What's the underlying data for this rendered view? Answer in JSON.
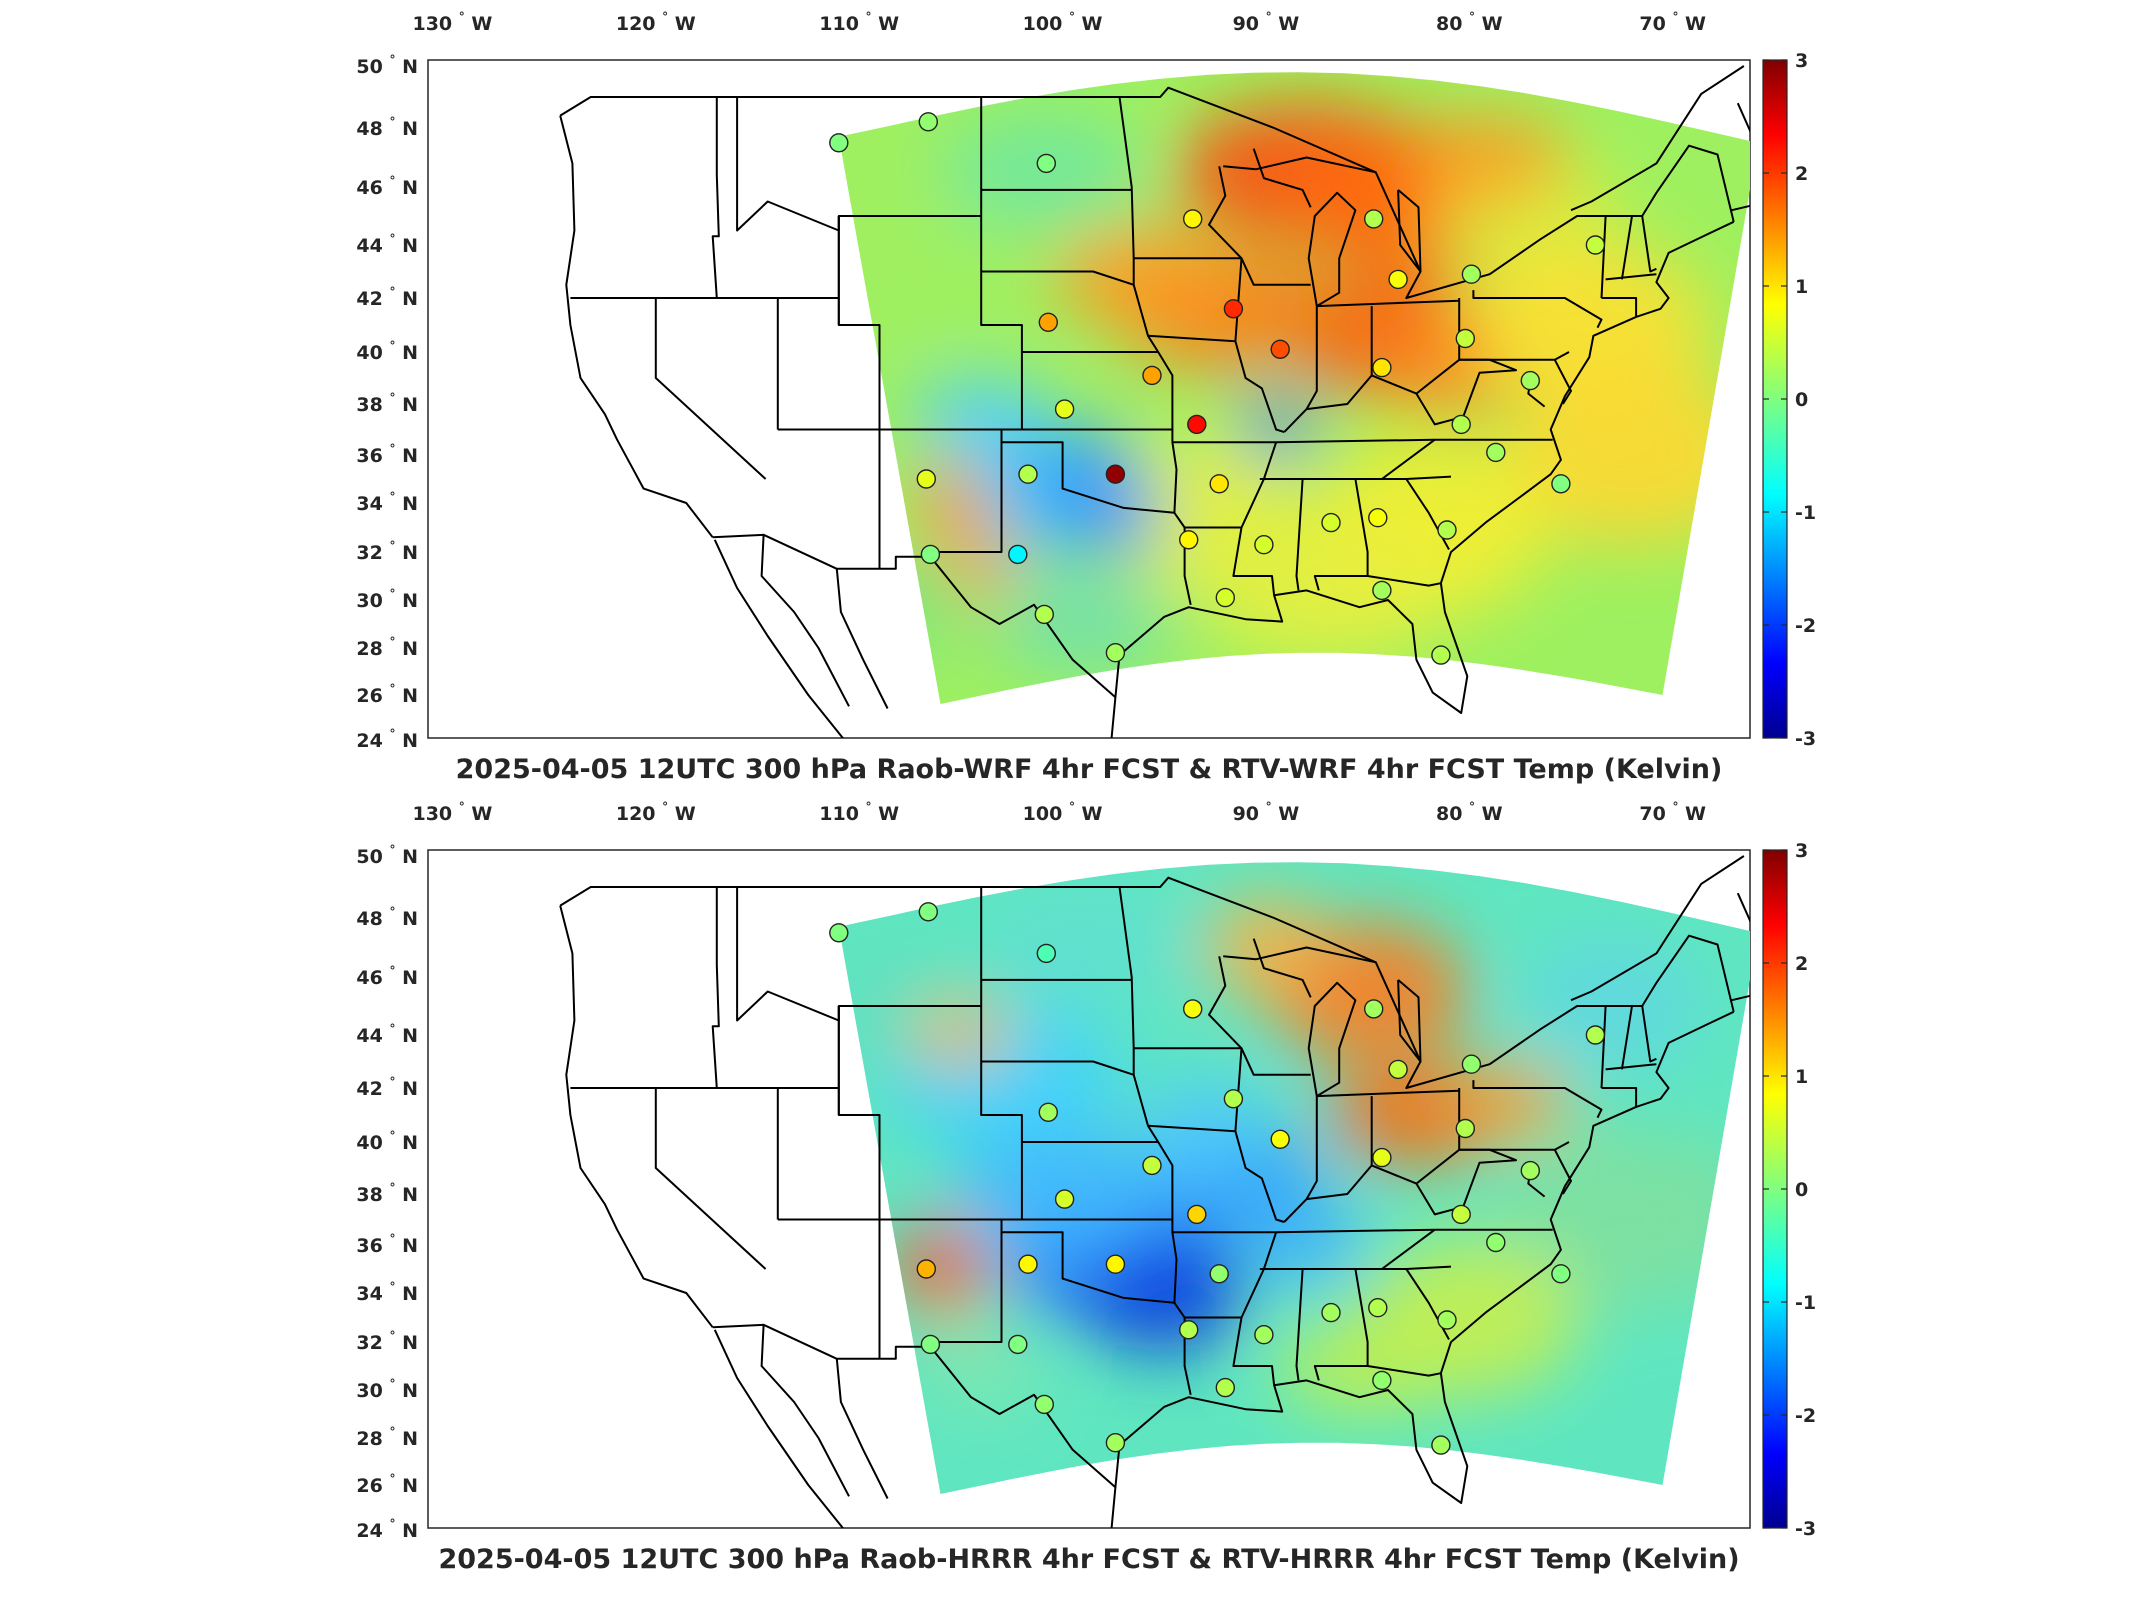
{
  "panels": [
    {
      "title": "2025-04-05 12UTC 300 hPa Raob-WRF 4hr FCST & RTV-WRF 4hr FCST Temp (Kelvin)",
      "stations": [
        {
          "lon": -111.0,
          "lat": 47.5,
          "v": 0.0
        },
        {
          "lon": -106.6,
          "lat": 48.2,
          "v": 0.1
        },
        {
          "lon": -100.8,
          "lat": 46.8,
          "v": 0.0
        },
        {
          "lon": -93.6,
          "lat": 44.9,
          "v": 0.8
        },
        {
          "lon": -84.7,
          "lat": 44.9,
          "v": 0.3
        },
        {
          "lon": -83.5,
          "lat": 42.7,
          "v": 0.7
        },
        {
          "lon": -79.9,
          "lat": 42.9,
          "v": 0.2
        },
        {
          "lon": -73.8,
          "lat": 44.0,
          "v": 0.4
        },
        {
          "lon": -100.7,
          "lat": 41.1,
          "v": 1.3
        },
        {
          "lon": -91.6,
          "lat": 41.6,
          "v": 2.0
        },
        {
          "lon": -89.3,
          "lat": 40.1,
          "v": 1.8
        },
        {
          "lon": -84.3,
          "lat": 39.4,
          "v": 0.9
        },
        {
          "lon": -80.2,
          "lat": 40.5,
          "v": 0.4
        },
        {
          "lon": -95.6,
          "lat": 39.1,
          "v": 1.3
        },
        {
          "lon": -99.9,
          "lat": 37.8,
          "v": 0.6
        },
        {
          "lon": -93.4,
          "lat": 37.2,
          "v": 2.2
        },
        {
          "lon": -80.4,
          "lat": 37.2,
          "v": 0.3
        },
        {
          "lon": -77.0,
          "lat": 38.9,
          "v": 0.2
        },
        {
          "lon": -75.5,
          "lat": 34.8,
          "v": 0.0
        },
        {
          "lon": -78.7,
          "lat": 36.1,
          "v": 0.2
        },
        {
          "lon": -106.7,
          "lat": 35.0,
          "v": 0.6
        },
        {
          "lon": -101.7,
          "lat": 35.2,
          "v": 0.3
        },
        {
          "lon": -97.4,
          "lat": 35.2,
          "v": 2.9
        },
        {
          "lon": -92.3,
          "lat": 34.8,
          "v": 0.9
        },
        {
          "lon": -86.8,
          "lat": 33.2,
          "v": 0.5
        },
        {
          "lon": -84.5,
          "lat": 33.4,
          "v": 0.7
        },
        {
          "lon": -81.1,
          "lat": 32.9,
          "v": 0.3
        },
        {
          "lon": -106.5,
          "lat": 31.9,
          "v": 0.0
        },
        {
          "lon": -102.2,
          "lat": 31.9,
          "v": -0.8
        },
        {
          "lon": -93.8,
          "lat": 32.5,
          "v": 0.8
        },
        {
          "lon": -90.1,
          "lat": 32.3,
          "v": 0.5
        },
        {
          "lon": -84.3,
          "lat": 30.4,
          "v": 0.2
        },
        {
          "lon": -92.0,
          "lat": 30.1,
          "v": 0.5
        },
        {
          "lon": -100.9,
          "lat": 29.4,
          "v": 0.3
        },
        {
          "lon": -97.4,
          "lat": 27.8,
          "v": 0.2
        },
        {
          "lon": -81.4,
          "lat": 27.7,
          "v": 0.3
        }
      ]
    },
    {
      "title": "2025-04-05 12UTC 300 hPa Raob-HRRR 4hr FCST & RTV-HRRR 4hr FCST Temp (Kelvin)",
      "stations": [
        {
          "lon": -111.0,
          "lat": 47.5,
          "v": 0.0
        },
        {
          "lon": -106.6,
          "lat": 48.2,
          "v": 0.0
        },
        {
          "lon": -100.8,
          "lat": 46.8,
          "v": -0.3
        },
        {
          "lon": -93.6,
          "lat": 44.9,
          "v": 0.7
        },
        {
          "lon": -84.7,
          "lat": 44.9,
          "v": 0.2
        },
        {
          "lon": -83.5,
          "lat": 42.7,
          "v": 0.4
        },
        {
          "lon": -79.9,
          "lat": 42.9,
          "v": 0.1
        },
        {
          "lon": -73.8,
          "lat": 44.0,
          "v": 0.3
        },
        {
          "lon": -100.7,
          "lat": 41.1,
          "v": 0.2
        },
        {
          "lon": -91.6,
          "lat": 41.6,
          "v": 0.3
        },
        {
          "lon": -89.3,
          "lat": 40.1,
          "v": 0.7
        },
        {
          "lon": -84.3,
          "lat": 39.4,
          "v": 0.6
        },
        {
          "lon": -80.2,
          "lat": 40.5,
          "v": 0.3
        },
        {
          "lon": -95.6,
          "lat": 39.1,
          "v": 0.4
        },
        {
          "lon": -99.9,
          "lat": 37.8,
          "v": 0.5
        },
        {
          "lon": -93.4,
          "lat": 37.2,
          "v": 1.0
        },
        {
          "lon": -80.4,
          "lat": 37.2,
          "v": 0.4
        },
        {
          "lon": -77.0,
          "lat": 38.9,
          "v": 0.2
        },
        {
          "lon": -75.5,
          "lat": 34.8,
          "v": 0.0
        },
        {
          "lon": -78.7,
          "lat": 36.1,
          "v": 0.1
        },
        {
          "lon": -106.7,
          "lat": 35.0,
          "v": 1.2
        },
        {
          "lon": -101.7,
          "lat": 35.2,
          "v": 0.8
        },
        {
          "lon": -97.4,
          "lat": 35.2,
          "v": 0.8
        },
        {
          "lon": -92.3,
          "lat": 34.8,
          "v": 0.1
        },
        {
          "lon": -86.8,
          "lat": 33.2,
          "v": 0.2
        },
        {
          "lon": -84.5,
          "lat": 33.4,
          "v": 0.3
        },
        {
          "lon": -81.1,
          "lat": 32.9,
          "v": 0.2
        },
        {
          "lon": -106.5,
          "lat": 31.9,
          "v": 0.0
        },
        {
          "lon": -102.2,
          "lat": 31.9,
          "v": 0.0
        },
        {
          "lon": -93.8,
          "lat": 32.5,
          "v": 0.3
        },
        {
          "lon": -90.1,
          "lat": 32.3,
          "v": 0.2
        },
        {
          "lon": -84.3,
          "lat": 30.4,
          "v": 0.1
        },
        {
          "lon": -92.0,
          "lat": 30.1,
          "v": 0.3
        },
        {
          "lon": -100.9,
          "lat": 29.4,
          "v": 0.1
        },
        {
          "lon": -97.4,
          "lat": 27.8,
          "v": 0.2
        },
        {
          "lon": -81.4,
          "lat": 27.7,
          "v": 0.2
        }
      ]
    }
  ],
  "lon_ticks": [
    "130",
    "120",
    "110",
    "100",
    "90",
    "80",
    "70"
  ],
  "lon_hemi": "W",
  "lat_ticks": [
    "24",
    "26",
    "28",
    "30",
    "32",
    "34",
    "36",
    "38",
    "40",
    "42",
    "44",
    "46",
    "48",
    "50"
  ],
  "lat_hemi": "N",
  "degree_symbol": "°",
  "colorbar": {
    "min": -3,
    "max": 3,
    "ticks": [
      "3",
      "2",
      "1",
      "0",
      "-1",
      "-2",
      "-3"
    ]
  },
  "colors": {
    "colormap": "jet",
    "station_edge": "#222222",
    "state_lines": "#000000"
  }
}
